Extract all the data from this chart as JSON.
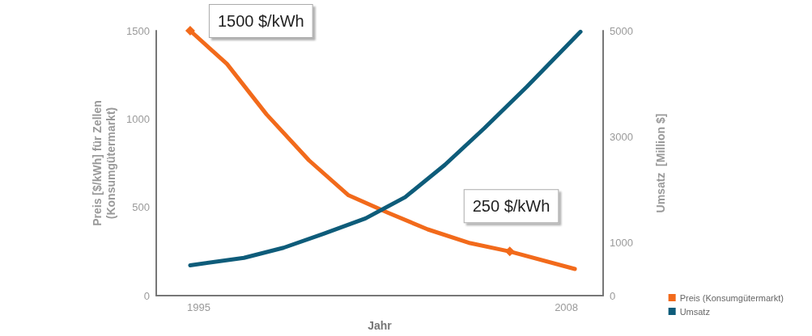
{
  "chart_data": {
    "type": "line",
    "xlabel": "Jahr",
    "ylabel": "Preis [$/kWh] für Zellen\n(Konsumgütermarkt)",
    "y2label": "Umsatz  [Million $]",
    "xlim": [
      1993.5,
      2009.3
    ],
    "xticks": [
      1995,
      2008
    ],
    "ylim": [
      0,
      1500
    ],
    "yticks": [
      0,
      500,
      1000,
      1500
    ],
    "y2lim": [
      0,
      5000
    ],
    "y2ticks": [
      0,
      1000,
      3000,
      5000
    ],
    "grid": false,
    "legend": "bottom right",
    "marker": "none",
    "line_style": "solid",
    "series": [
      {
        "name": "Preis (Konsumgütermarkt)",
        "color": "#f26a1b",
        "x": [
          1994.7,
          1996,
          1997.4,
          1998.9,
          2000.3,
          2001.7,
          2003.1,
          2004.6,
          2006,
          2008.3
        ],
        "values": [
          1500,
          1312,
          1026,
          766,
          568,
          469,
          375,
          297,
          250,
          151
        ]
      },
      {
        "name": "Umsatz",
        "color": "#0e5c7a",
        "axis": "y2",
        "x": [
          1994.7,
          1996.6,
          1998,
          1999.4,
          2000.9,
          2002.3,
          2003.7,
          2005.1,
          2006.6,
          2008.5
        ],
        "values": [
          573,
          712,
          903,
          1163,
          1458,
          1858,
          2465,
          3160,
          3941,
          4980
        ]
      }
    ],
    "annotations": [
      {
        "text": "1500 $/kWh",
        "x": 1994.7,
        "y": 1500
      },
      {
        "text": "250 $/kWh",
        "x": 2006,
        "y": 250
      }
    ]
  }
}
